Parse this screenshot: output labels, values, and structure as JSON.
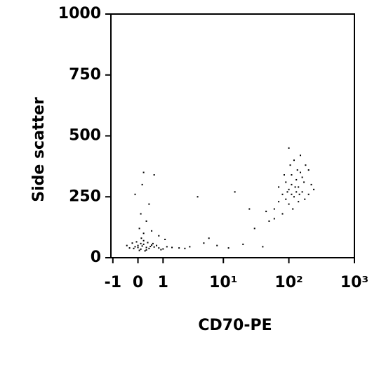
{
  "chart_data": {
    "type": "scatter",
    "xlabel": "CD70-PE",
    "ylabel": "Side scatter",
    "xscale": "asinh",
    "color": "#000000",
    "xlim": [
      -1.1,
      1000
    ],
    "ylim": [
      0,
      1000
    ],
    "xticks": [
      -1,
      0,
      1,
      {
        "value": 10,
        "label": "10¹"
      },
      {
        "value": 100,
        "label": "10²"
      },
      {
        "value": 1000,
        "label": "10³"
      }
    ],
    "yticks": [
      0,
      250,
      500,
      750,
      1000
    ],
    "x": [
      -0.3,
      -0.1,
      0,
      0.1,
      0.2,
      0.3,
      -0.2,
      0.05,
      0.15,
      0.4,
      0.5,
      0.6,
      0.8,
      1,
      1.2,
      -0.4,
      -0.05,
      0.25,
      0.35,
      0.45,
      0.7,
      0.9,
      0.1,
      -0.15,
      0.2,
      0,
      0.3,
      0.55,
      1.5,
      2,
      2.5,
      3,
      0.12,
      0.2,
      0.05,
      0.3,
      0.1,
      0.4,
      0.15,
      0.2,
      0.6,
      -0.1,
      0.5,
      0.8,
      1.1,
      5,
      8,
      12,
      20,
      6,
      4,
      15,
      30,
      40,
      25,
      60,
      70,
      80,
      90,
      100,
      110,
      120,
      130,
      140,
      150,
      160,
      170,
      180,
      200,
      220,
      80,
      90,
      100,
      110,
      120,
      130,
      140,
      150,
      160,
      100,
      70,
      60,
      50,
      45,
      200,
      240,
      110,
      125,
      135,
      95,
      85,
      105,
      115,
      145,
      175
    ],
    "y": [
      40,
      45,
      50,
      35,
      55,
      42,
      60,
      30,
      48,
      38,
      52,
      44,
      40,
      36,
      45,
      50,
      65,
      28,
      62,
      46,
      50,
      33,
      58,
      38,
      70,
      42,
      32,
      58,
      42,
      40,
      38,
      45,
      80,
      100,
      120,
      150,
      180,
      220,
      300,
      350,
      340,
      260,
      110,
      90,
      75,
      60,
      50,
      40,
      55,
      80,
      250,
      270,
      120,
      45,
      200,
      200,
      230,
      260,
      240,
      280,
      300,
      250,
      320,
      290,
      350,
      270,
      310,
      380,
      260,
      300,
      180,
      310,
      220,
      340,
      400,
      270,
      230,
      420,
      330,
      450,
      290,
      160,
      150,
      190,
      360,
      280,
      260,
      290,
      360,
      270,
      340,
      380,
      200,
      260,
      240
    ]
  }
}
